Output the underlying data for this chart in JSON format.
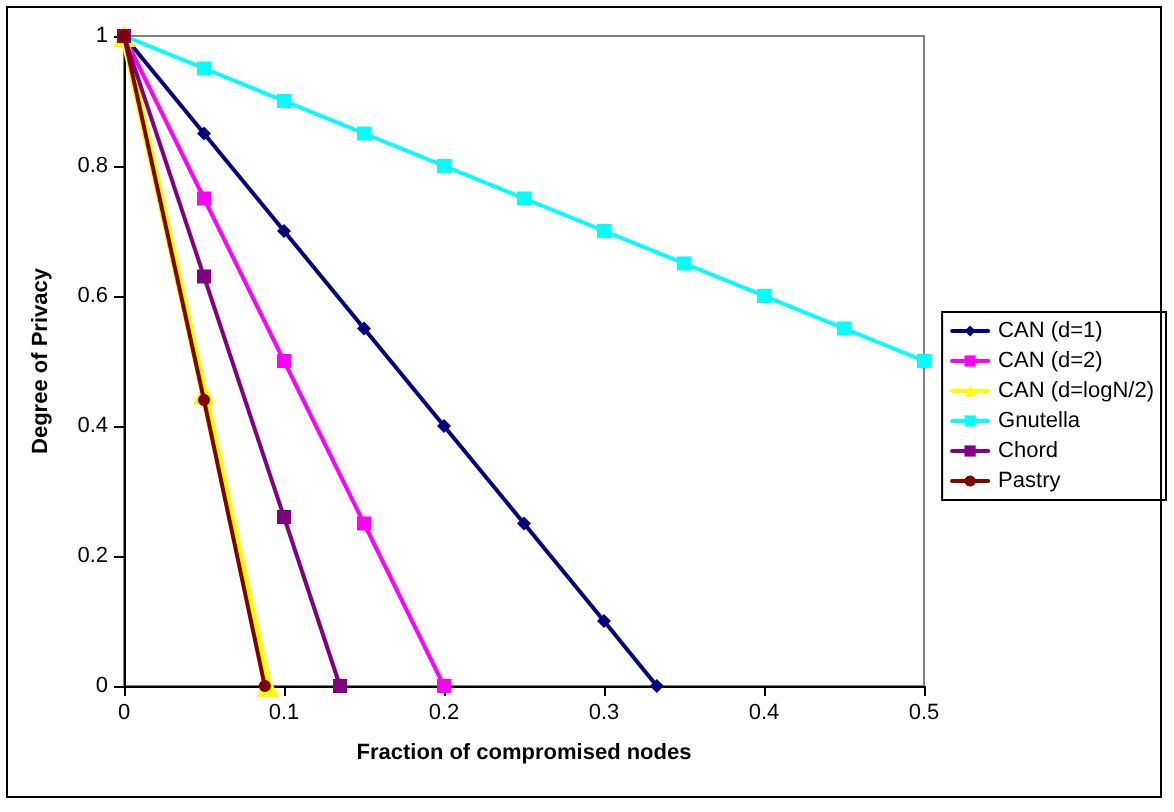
{
  "chart_data": {
    "type": "line",
    "xlabel": "Fraction of compromised nodes",
    "ylabel": "Degree of Privacy",
    "xlim": [
      0,
      0.5
    ],
    "xticks": [
      0,
      0.1,
      0.2,
      0.3,
      0.4,
      0.5
    ],
    "ylim": [
      0,
      1
    ],
    "yticks": [
      0,
      0.2,
      0.4,
      0.6,
      0.8,
      1
    ],
    "grid": false,
    "legend": "right",
    "line_style": "solid",
    "series": [
      {
        "name": "CAN (d=1)",
        "color": "#000080",
        "marker": "diamond",
        "x": [
          0,
          0.05,
          0.1,
          0.15,
          0.2,
          0.25,
          0.3,
          0.333
        ],
        "values": [
          1,
          0.85,
          0.7,
          0.55,
          0.4,
          0.25,
          0.1,
          0
        ]
      },
      {
        "name": "CAN (d=2)",
        "color": "#ff00ff",
        "marker": "square",
        "x": [
          0,
          0.05,
          0.1,
          0.15,
          0.2
        ],
        "values": [
          1,
          0.75,
          0.5,
          0.25,
          0
        ]
      },
      {
        "name": "CAN (d=logN/2)",
        "color": "#ffff00",
        "marker": "triangle",
        "x": [
          0,
          0.05,
          0.09
        ],
        "values": [
          1,
          0.45,
          0
        ]
      },
      {
        "name": "Gnutella",
        "color": "#00ffff",
        "marker": "square",
        "x": [
          0,
          0.05,
          0.1,
          0.15,
          0.2,
          0.25,
          0.3,
          0.35,
          0.4,
          0.45,
          0.5
        ],
        "values": [
          1,
          0.95,
          0.9,
          0.85,
          0.8,
          0.75,
          0.7,
          0.65,
          0.6,
          0.55,
          0.5
        ]
      },
      {
        "name": "Chord",
        "color": "#800080",
        "marker": "square",
        "x": [
          0,
          0.05,
          0.1,
          0.135
        ],
        "values": [
          1,
          0.63,
          0.26,
          0
        ]
      },
      {
        "name": "Pastry",
        "color": "#800000",
        "marker": "circle",
        "x": [
          0,
          0.05,
          0.088
        ],
        "values": [
          1,
          0.44,
          0
        ]
      }
    ]
  }
}
